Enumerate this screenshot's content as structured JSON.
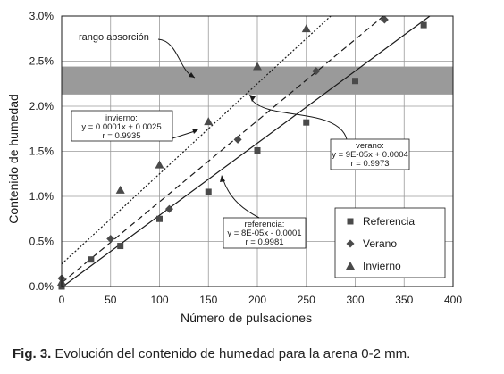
{
  "caption": {
    "label": "Fig. 3.",
    "text": "Evolución del contenido de humedad para la arena 0-2 mm."
  },
  "chart_data": {
    "type": "scatter",
    "xlabel": "Número de pulsaciones",
    "ylabel": "Contenido de humedad",
    "xlim": [
      0,
      400
    ],
    "ylim": [
      0,
      3.0
    ],
    "xticks": [
      0,
      50,
      100,
      150,
      200,
      250,
      300,
      350,
      400
    ],
    "yticks": [
      "0.0%",
      "0.5%",
      "1.0%",
      "1.5%",
      "2.0%",
      "2.5%",
      "3.0%"
    ],
    "grid": true,
    "legend_position": "bottom-right",
    "absorption_band": {
      "label": "rango absorción",
      "ymin": 2.13,
      "ymax": 2.44
    },
    "series": [
      {
        "name": "Referencia",
        "marker": "square",
        "x": [
          0,
          30,
          60,
          100,
          150,
          200,
          250,
          300,
          370
        ],
        "y": [
          0.0,
          0.3,
          0.45,
          0.75,
          1.05,
          1.51,
          1.82,
          2.28,
          2.9
        ],
        "trend": {
          "slope": 0.008,
          "intercept": -0.01,
          "style": "solid",
          "label": [
            "referencia:",
            "y = 8E-05x - 0.0001",
            "r = 0.9981"
          ]
        }
      },
      {
        "name": "Verano",
        "marker": "diamond",
        "x": [
          0,
          50,
          110,
          180,
          260,
          330
        ],
        "y": [
          0.09,
          0.53,
          0.86,
          1.63,
          2.39,
          2.96
        ],
        "trend": {
          "slope": 0.009,
          "intercept": 0.04,
          "style": "dashed",
          "label": [
            "verano:",
            "y = 9E-05x + 0.0004",
            "r = 0.9973"
          ]
        }
      },
      {
        "name": "Invierno",
        "marker": "triangle",
        "x": [
          0,
          60,
          100,
          150,
          200,
          250
        ],
        "y": [
          0.05,
          1.07,
          1.35,
          1.83,
          2.44,
          2.86
        ],
        "trend": {
          "slope": 0.01,
          "intercept": 0.25,
          "style": "dotted",
          "label": [
            "invierno:",
            "y = 0.0001x + 0.0025",
            "r = 0.9935"
          ]
        }
      }
    ]
  }
}
